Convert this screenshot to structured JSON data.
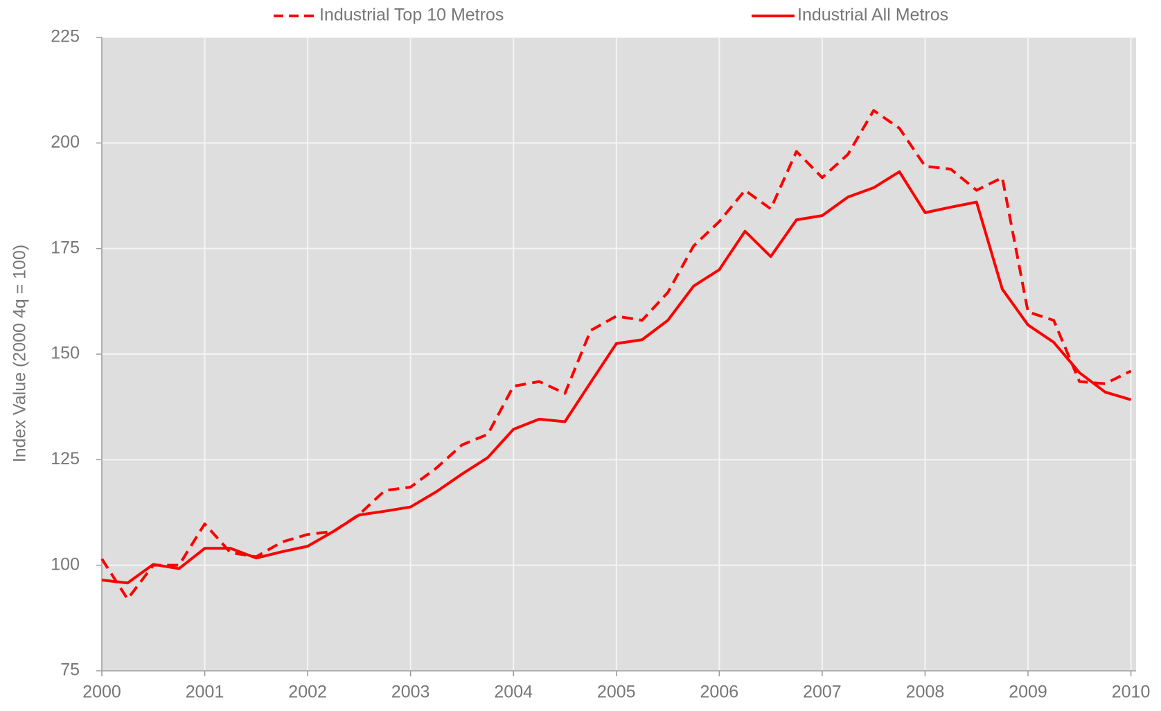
{
  "chart_data": {
    "type": "line",
    "y_label": "Index Value (2000 4q = 100)",
    "x": [
      2000,
      2000.25,
      2000.5,
      2000.75,
      2001,
      2001.25,
      2001.5,
      2001.75,
      2002,
      2002.25,
      2002.5,
      2002.75,
      2003,
      2003.25,
      2003.5,
      2003.75,
      2004,
      2004.25,
      2004.5,
      2004.75,
      2005,
      2005.25,
      2005.5,
      2005.75,
      2006,
      2006.25,
      2006.5,
      2006.75,
      2007,
      2007.25,
      2007.5,
      2007.75,
      2008,
      2008.25,
      2008.5,
      2008.75,
      2009,
      2009.25,
      2009.5,
      2009.75,
      2010
    ],
    "series": [
      {
        "name": "Industrial Top 10 Metros",
        "color": "#ff0000",
        "line_style": "dashed",
        "values": [
          101.5,
          92,
          100,
          100,
          109.8,
          103,
          102,
          105.5,
          107.3,
          108,
          112,
          117.7,
          118.5,
          123,
          128.5,
          131,
          142.4,
          143.5,
          140.7,
          155.6,
          159,
          158,
          164.6,
          175.6,
          181.4,
          188.8,
          184.4,
          198,
          191.8,
          197.3,
          207.7,
          203.5,
          194.5,
          193.8,
          188.8,
          191.8,
          160,
          158,
          143.5,
          143,
          146
        ]
      },
      {
        "name": "Industrial All Metros",
        "color": "#ff0000",
        "line_style": "solid",
        "values": [
          96.5,
          95.8,
          100.2,
          99.2,
          104,
          104,
          101.7,
          103.2,
          104.5,
          108,
          111.9,
          112.8,
          113.8,
          117.4,
          121.6,
          125.5,
          132.2,
          134.6,
          134,
          143.3,
          152.5,
          153.4,
          158,
          166.1,
          170,
          179.1,
          173.1,
          181.8,
          182.8,
          187.2,
          189.4,
          193.2,
          183.5,
          184.8,
          186,
          165.4,
          156.9,
          152.8,
          145.6,
          141,
          139.2
        ]
      }
    ],
    "xlim": [
      2000,
      2010.05
    ],
    "xticks": [
      2000,
      2001,
      2002,
      2003,
      2004,
      2005,
      2006,
      2007,
      2008,
      2009,
      2010
    ],
    "ylim": [
      75,
      225
    ],
    "yticks": [
      75,
      100,
      125,
      150,
      175,
      200,
      225
    ],
    "grid": true,
    "legend": "top"
  }
}
